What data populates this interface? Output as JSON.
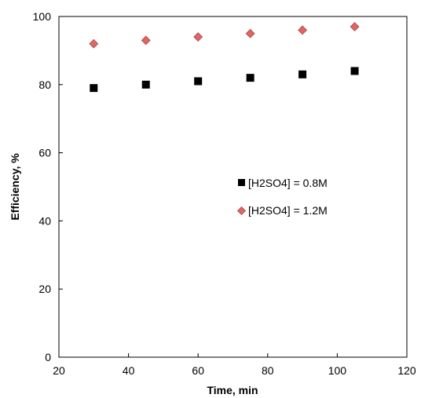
{
  "chart_data": {
    "type": "scatter",
    "title": "",
    "xlabel": "Time, min",
    "ylabel": "Efficiency, %",
    "xlim": [
      20,
      120
    ],
    "ylim": [
      0,
      100
    ],
    "xticks": [
      20,
      40,
      60,
      80,
      100,
      120
    ],
    "yticks": [
      0,
      20,
      40,
      60,
      80,
      100
    ],
    "grid": false,
    "legend_position": "center-right",
    "series": [
      {
        "name": "[H2SO4] = 0.8M",
        "marker": "square",
        "color": "#000000",
        "x": [
          30,
          45,
          60,
          75,
          90,
          105
        ],
        "y": [
          79,
          80,
          81,
          82,
          83,
          84
        ]
      },
      {
        "name": "[H2SO4] = 1.2M",
        "marker": "diamond",
        "color": "#e06666",
        "stroke": "#a94444",
        "x": [
          30,
          45,
          60,
          75,
          90,
          105
        ],
        "y": [
          92,
          93,
          94,
          95,
          96,
          97
        ]
      }
    ]
  }
}
